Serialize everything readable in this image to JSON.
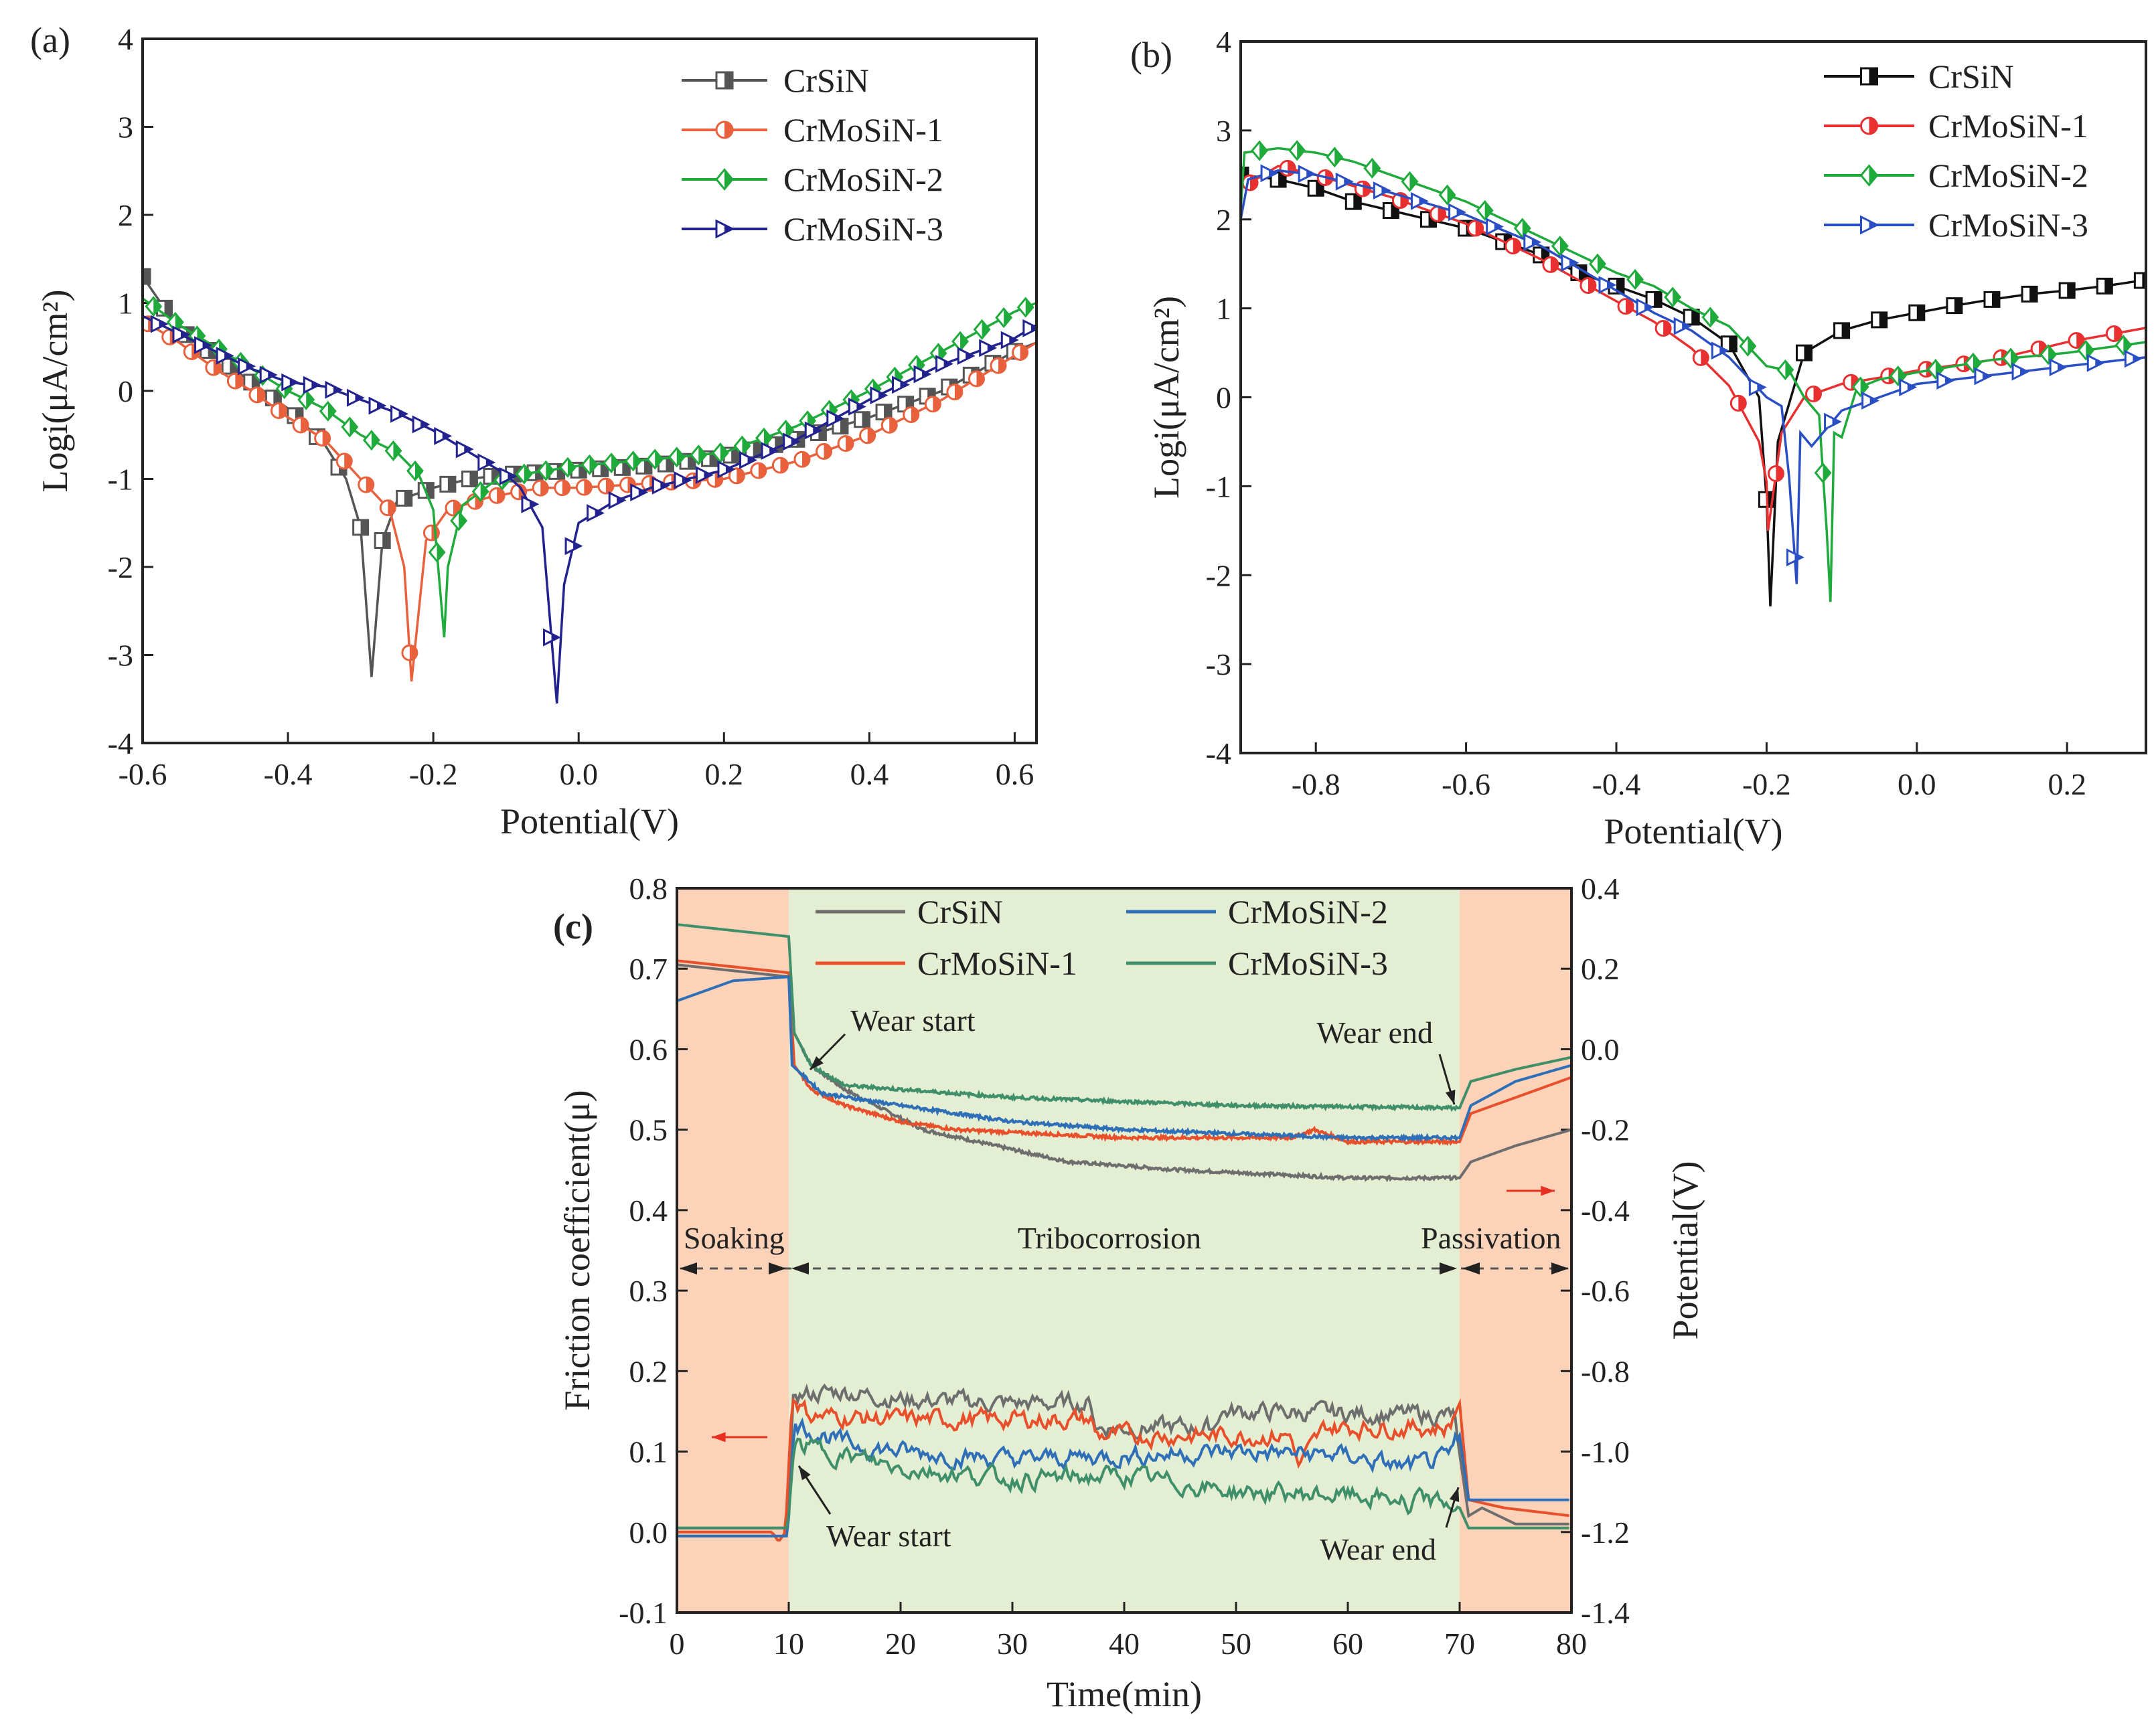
{
  "chart_data": [
    {
      "id": "a",
      "type": "line",
      "panel_label": "(a)",
      "title": "",
      "xlabel": "Potential(V)",
      "ylabel": "Logi(μA/cm²)",
      "xlim": [
        -0.6,
        0.63
      ],
      "ylim": [
        -4,
        4
      ],
      "xticks": [
        -0.6,
        -0.4,
        -0.2,
        0.0,
        0.2,
        0.4,
        0.6
      ],
      "xtick_labels": [
        "-0.6",
        "-0.4",
        "-0.2",
        "0.0",
        "0.2",
        "0.4",
        "0.6"
      ],
      "yticks": [
        -4,
        -3,
        -2,
        -1,
        0,
        1,
        2,
        3,
        4
      ],
      "ytick_labels": [
        "-4",
        "-3",
        "-2",
        "-1",
        "0",
        "1",
        "2",
        "3",
        "4"
      ],
      "grid": false,
      "legend_position": "top-right",
      "series": [
        {
          "name": "CrSiN",
          "color": "#555555",
          "marker": "square",
          "x": [
            -0.6,
            -0.55,
            -0.5,
            -0.45,
            -0.4,
            -0.35,
            -0.32,
            -0.3,
            -0.285,
            -0.27,
            -0.25,
            -0.2,
            -0.15,
            -0.1,
            0.0,
            0.1,
            0.2,
            0.3,
            0.4,
            0.45,
            0.5,
            0.6,
            0.63
          ],
          "y": [
            1.3,
            0.7,
            0.4,
            0.1,
            -0.2,
            -0.6,
            -1.0,
            -1.55,
            -3.25,
            -1.7,
            -1.25,
            -1.1,
            -1.0,
            -0.95,
            -0.9,
            -0.85,
            -0.75,
            -0.55,
            -0.3,
            -0.15,
            0.0,
            0.45,
            0.55
          ]
        },
        {
          "name": "CrMoSiN-1",
          "color": "#e8603c",
          "marker": "circle",
          "x": [
            -0.6,
            -0.55,
            -0.5,
            -0.45,
            -0.4,
            -0.35,
            -0.3,
            -0.26,
            -0.24,
            -0.23,
            -0.21,
            -0.18,
            -0.12,
            -0.05,
            0.0,
            0.1,
            0.2,
            0.3,
            0.4,
            0.5,
            0.6,
            0.63
          ],
          "y": [
            0.8,
            0.55,
            0.25,
            0.0,
            -0.3,
            -0.55,
            -1.0,
            -1.35,
            -2.0,
            -3.3,
            -1.7,
            -1.35,
            -1.2,
            -1.1,
            -1.1,
            -1.05,
            -1.0,
            -0.8,
            -0.5,
            -0.1,
            0.4,
            0.55
          ]
        },
        {
          "name": "CrMoSiN-2",
          "color": "#1faa3c",
          "marker": "diamond",
          "x": [
            -0.6,
            -0.55,
            -0.5,
            -0.45,
            -0.4,
            -0.35,
            -0.3,
            -0.25,
            -0.22,
            -0.2,
            -0.185,
            -0.18,
            -0.16,
            -0.12,
            -0.08,
            0.0,
            0.1,
            0.2,
            0.3,
            0.4,
            0.5,
            0.6,
            0.63
          ],
          "y": [
            1.05,
            0.75,
            0.5,
            0.25,
            0.0,
            -0.2,
            -0.5,
            -0.7,
            -0.95,
            -1.35,
            -2.8,
            -2.0,
            -1.3,
            -1.05,
            -0.95,
            -0.85,
            -0.78,
            -0.7,
            -0.4,
            0.0,
            0.45,
            0.9,
            1.0
          ]
        },
        {
          "name": "CrMoSiN-3",
          "color": "#23238f",
          "marker": "triangle",
          "x": [
            -0.6,
            -0.5,
            -0.45,
            -0.4,
            -0.35,
            -0.3,
            -0.25,
            -0.2,
            -0.15,
            -0.1,
            -0.08,
            -0.05,
            -0.03,
            -0.02,
            0.0,
            0.05,
            0.1,
            0.2,
            0.3,
            0.4,
            0.5,
            0.6,
            0.63
          ],
          "y": [
            0.85,
            0.45,
            0.25,
            0.1,
            0.05,
            -0.1,
            -0.25,
            -0.45,
            -0.7,
            -0.95,
            -1.1,
            -1.55,
            -3.55,
            -2.2,
            -1.5,
            -1.25,
            -1.1,
            -0.9,
            -0.55,
            -0.1,
            0.3,
            0.6,
            0.75
          ]
        }
      ]
    },
    {
      "id": "b",
      "type": "line",
      "panel_label": "(b)",
      "title": "",
      "xlabel": "Potential(V)",
      "ylabel": "Logi(μA/cm²)",
      "xlim": [
        -0.9,
        0.305
      ],
      "ylim": [
        -4,
        4
      ],
      "xticks": [
        -0.8,
        -0.6,
        -0.4,
        -0.2,
        0.0,
        0.2
      ],
      "xtick_labels": [
        "-0.8",
        "-0.6",
        "-0.4",
        "-0.2",
        "0.0",
        "0.2"
      ],
      "yticks": [
        -4,
        -3,
        -2,
        -1,
        0,
        1,
        2,
        3,
        4
      ],
      "ytick_labels": [
        "-4",
        "-3",
        "-2",
        "-1",
        "0",
        "1",
        "2",
        "3",
        "4"
      ],
      "grid": false,
      "legend_position": "top-right",
      "series": [
        {
          "name": "CrSiN",
          "color": "#111111",
          "marker": "square",
          "x": [
            -0.9,
            -0.85,
            -0.8,
            -0.75,
            -0.7,
            -0.65,
            -0.6,
            -0.55,
            -0.5,
            -0.45,
            -0.4,
            -0.35,
            -0.3,
            -0.25,
            -0.21,
            -0.2,
            -0.195,
            -0.185,
            -0.15,
            -0.1,
            -0.05,
            0.0,
            0.05,
            0.1,
            0.15,
            0.2,
            0.25,
            0.305
          ],
          "y": [
            2.5,
            2.45,
            2.35,
            2.2,
            2.1,
            2.0,
            1.9,
            1.75,
            1.6,
            1.4,
            1.25,
            1.1,
            0.9,
            0.6,
            0.0,
            -1.15,
            -2.35,
            -0.5,
            0.5,
            0.75,
            0.87,
            0.95,
            1.03,
            1.1,
            1.16,
            1.2,
            1.25,
            1.32
          ]
        },
        {
          "name": "CrMoSiN-1",
          "color": "#e83030",
          "marker": "circle",
          "x": [
            -0.9,
            -0.85,
            -0.8,
            -0.7,
            -0.6,
            -0.5,
            -0.4,
            -0.35,
            -0.3,
            -0.25,
            -0.21,
            -0.2,
            -0.198,
            -0.18,
            -0.15,
            -0.1,
            -0.05,
            0.0,
            0.1,
            0.2,
            0.305
          ],
          "y": [
            2.35,
            2.6,
            2.5,
            2.25,
            1.95,
            1.55,
            1.08,
            0.85,
            0.55,
            0.13,
            -0.5,
            -0.95,
            -1.5,
            -0.4,
            0.0,
            0.15,
            0.22,
            0.3,
            0.42,
            0.62,
            0.78
          ]
        },
        {
          "name": "CrMoSiN-2",
          "color": "#1faa3c",
          "marker": "diamond",
          "x": [
            -0.9,
            -0.895,
            -0.85,
            -0.8,
            -0.75,
            -0.7,
            -0.65,
            -0.6,
            -0.55,
            -0.5,
            -0.45,
            -0.4,
            -0.35,
            -0.3,
            -0.25,
            -0.2,
            -0.17,
            -0.15,
            -0.13,
            -0.12,
            -0.115,
            -0.11,
            -0.1,
            -0.08,
            -0.05,
            0.0,
            0.1,
            0.2,
            0.305
          ],
          "y": [
            2.1,
            2.75,
            2.8,
            2.75,
            2.65,
            2.5,
            2.35,
            2.2,
            2.0,
            1.8,
            1.6,
            1.4,
            1.25,
            1.0,
            0.8,
            0.35,
            0.3,
            0.0,
            -0.2,
            -1.5,
            -2.3,
            -0.4,
            -0.45,
            0.1,
            0.2,
            0.28,
            0.42,
            0.5,
            0.62
          ]
        },
        {
          "name": "CrMoSiN-3",
          "color": "#2a4fc4",
          "marker": "triangle",
          "x": [
            -0.9,
            -0.89,
            -0.85,
            -0.8,
            -0.7,
            -0.6,
            -0.5,
            -0.45,
            -0.4,
            -0.35,
            -0.3,
            -0.25,
            -0.2,
            -0.18,
            -0.17,
            -0.16,
            -0.155,
            -0.14,
            -0.1,
            -0.05,
            0.0,
            0.1,
            0.2,
            0.305
          ],
          "y": [
            2.0,
            2.45,
            2.55,
            2.5,
            2.3,
            2.05,
            1.7,
            1.45,
            1.2,
            0.95,
            0.75,
            0.45,
            0.0,
            -0.1,
            -0.9,
            -2.1,
            -0.4,
            -0.55,
            -0.15,
            0.0,
            0.15,
            0.25,
            0.35,
            0.45
          ]
        }
      ]
    },
    {
      "id": "c",
      "type": "line",
      "panel_label": "(c)",
      "title": "",
      "xlabel": "Time(min)",
      "ylabel": "Friction coefficient(μ)",
      "ylabel_right": "Potential(V)",
      "xlim": [
        0,
        80
      ],
      "ylim": [
        -0.1,
        0.8
      ],
      "ylim_right": [
        -1.4,
        0.4
      ],
      "xticks": [
        0,
        10,
        20,
        30,
        40,
        50,
        60,
        70,
        80
      ],
      "xtick_labels": [
        "0",
        "10",
        "20",
        "30",
        "40",
        "50",
        "60",
        "70",
        "80"
      ],
      "yticks": [
        -0.1,
        0.0,
        0.1,
        0.2,
        0.3,
        0.4,
        0.5,
        0.6,
        0.7,
        0.8
      ],
      "ytick_labels": [
        "-0.1",
        "0.0",
        "0.1",
        "0.2",
        "0.3",
        "0.4",
        "0.5",
        "0.6",
        "0.7",
        "0.8"
      ],
      "yticks_right": [
        -1.4,
        -1.2,
        -1.0,
        -0.8,
        -0.6,
        -0.4,
        -0.2,
        0.0,
        0.2,
        0.4
      ],
      "ytick_labels_right": [
        "-1.4",
        "-1.2",
        "-1.0",
        "-0.8",
        "-0.6",
        "-0.4",
        "-0.2",
        "0.0",
        "0.2",
        "0.4"
      ],
      "grid": false,
      "legend_position": "top-center",
      "regions": [
        {
          "label": "Soaking",
          "from": 0,
          "to": 10,
          "color": "#fcd3b8"
        },
        {
          "label": "Tribocorrosion",
          "from": 10,
          "to": 70,
          "color": "#e4eed2"
        },
        {
          "label": "Passivation",
          "from": 70,
          "to": 80,
          "color": "#fcd3b8"
        }
      ],
      "annotations": {
        "wear_start_top": "Wear start",
        "wear_end_top": "Wear end",
        "wear_start_bottom": "Wear start",
        "wear_end_bottom": "Wear end"
      },
      "series": [
        {
          "name": "CrSiN",
          "color": "#6e6e6e",
          "potential": {
            "x": [
              0,
              10,
              10.5,
              12,
              15,
              22,
              35,
              45,
              60,
              70,
              71,
              75,
              80
            ],
            "y": [
              0.21,
              0.18,
              0.04,
              -0.04,
              -0.1,
              -0.2,
              -0.28,
              -0.3,
              -0.32,
              -0.32,
              -0.28,
              -0.24,
              -0.2
            ]
          },
          "friction": {
            "x": [
              0,
              9.9,
              10.4,
              15,
              20,
              30,
              37,
              37.5,
              48,
              48.5,
              69.5,
              70.8,
              72,
              75,
              80
            ],
            "y": [
              0.005,
              0.005,
              0.17,
              0.175,
              0.165,
              0.16,
              0.16,
              0.13,
              0.13,
              0.15,
              0.145,
              0.02,
              0.03,
              0.01,
              0.01
            ]
          }
        },
        {
          "name": "CrMoSiN-1",
          "color": "#e8502c",
          "potential": {
            "x": [
              0,
              10,
              10.5,
              12,
              15,
              20,
              25,
              40,
              55,
              57,
              60,
              70,
              71,
              75,
              80
            ],
            "y": [
              0.22,
              0.19,
              -0.04,
              -0.1,
              -0.14,
              -0.18,
              -0.2,
              -0.22,
              -0.22,
              -0.2,
              -0.23,
              -0.23,
              -0.16,
              -0.12,
              -0.07
            ]
          },
          "friction": {
            "x": [
              0,
              8.5,
              9.1,
              9.7,
              10.3,
              12,
              20,
              30,
              37,
              37.5,
              55,
              55.5,
              58,
              69,
              70,
              70.8,
              74,
              80
            ],
            "y": [
              0.0,
              0.0,
              -0.012,
              0.0,
              0.165,
              0.145,
              0.14,
              0.14,
              0.14,
              0.12,
              0.12,
              0.08,
              0.13,
              0.13,
              0.16,
              0.04,
              0.03,
              0.02
            ]
          }
        },
        {
          "name": "CrMoSiN-2",
          "color": "#2f6fb8",
          "potential": {
            "x": [
              0,
              5,
              10,
              10.3,
              13,
              20,
              30,
              40,
              60,
              70,
              71,
              75,
              80
            ],
            "y": [
              0.12,
              0.17,
              0.18,
              -0.04,
              -0.11,
              -0.14,
              -0.18,
              -0.2,
              -0.22,
              -0.22,
              -0.14,
              -0.08,
              -0.04
            ]
          },
          "friction": {
            "x": [
              0,
              9.9,
              10.5,
              15,
              20,
              30,
              40,
              50,
              60,
              65,
              69,
              70,
              70.8,
              80
            ],
            "y": [
              -0.005,
              -0.005,
              0.135,
              0.11,
              0.1,
              0.09,
              0.095,
              0.1,
              0.095,
              0.08,
              0.09,
              0.12,
              0.04,
              0.04
            ]
          }
        },
        {
          "name": "CrMoSiN-3",
          "color": "#3f8f6a",
          "potential": {
            "x": [
              0,
              10,
              10.5,
              12,
              15,
              30,
              50,
              70,
              71,
              75,
              80
            ],
            "y": [
              0.31,
              0.28,
              0.04,
              -0.04,
              -0.09,
              -0.12,
              -0.14,
              -0.146,
              -0.08,
              -0.05,
              -0.02
            ]
          },
          "friction": {
            "x": [
              0,
              9.9,
              10.5,
              15,
              20,
              30,
              40,
              50,
              60,
              65,
              65.5,
              66,
              69,
              70,
              70.8,
              80
            ],
            "y": [
              0.005,
              0.005,
              0.11,
              0.095,
              0.08,
              0.065,
              0.07,
              0.05,
              0.045,
              0.04,
              0.012,
              0.04,
              0.035,
              0.03,
              0.005,
              0.005
            ]
          }
        }
      ]
    }
  ]
}
